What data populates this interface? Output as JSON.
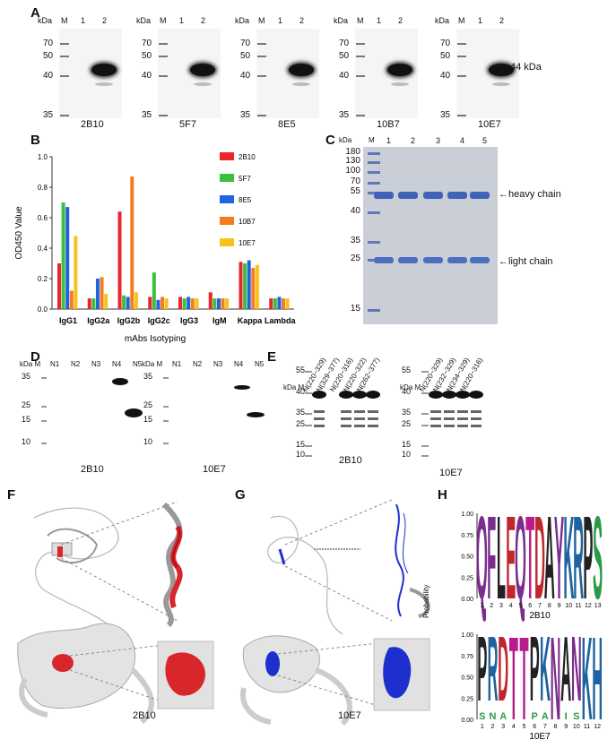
{
  "panel_labels": {
    "A": "A",
    "B": "B",
    "C": "C",
    "D": "D",
    "E": "E",
    "F": "F",
    "G": "G",
    "H": "H"
  },
  "panel_a": {
    "kda": "kDa",
    "m": "M",
    "lane1": "1",
    "lane2": "2",
    "markers": [
      "70",
      "50",
      "40",
      "35"
    ],
    "blots": [
      "2B10",
      "5F7",
      "8E5",
      "10B7",
      "10E7"
    ],
    "arrow_label": "←44 kDa"
  },
  "chart_data": {
    "type": "bar",
    "title": "",
    "xlabel": "mAbs Isotyping",
    "ylabel": "OD450 Value",
    "ylim": [
      0,
      1.0
    ],
    "yticks": [
      "0.0",
      "0.2",
      "0.4",
      "0.6",
      "0.8",
      "1.0"
    ],
    "categories": [
      "IgG1",
      "IgG2a",
      "IgG2b",
      "IgG2c",
      "IgG3",
      "IgM",
      "Kappa",
      "Lambda"
    ],
    "legend_position": "right",
    "series": [
      {
        "name": "2B10",
        "color": "#e8262b",
        "values": [
          0.3,
          0.07,
          0.64,
          0.08,
          0.08,
          0.11,
          0.31,
          0.07
        ]
      },
      {
        "name": "5F7",
        "color": "#3cbf3c",
        "values": [
          0.7,
          0.07,
          0.09,
          0.24,
          0.07,
          0.07,
          0.3,
          0.07
        ]
      },
      {
        "name": "8E5",
        "color": "#1f63e0",
        "values": [
          0.67,
          0.2,
          0.08,
          0.06,
          0.08,
          0.07,
          0.32,
          0.08
        ]
      },
      {
        "name": "10B7",
        "color": "#f47c20",
        "values": [
          0.12,
          0.21,
          0.87,
          0.08,
          0.07,
          0.07,
          0.27,
          0.07
        ]
      },
      {
        "name": "10E7",
        "color": "#f7c21a",
        "values": [
          0.48,
          0.1,
          0.11,
          0.07,
          0.07,
          0.07,
          0.29,
          0.07
        ]
      }
    ]
  },
  "panel_c": {
    "kda": "kDa",
    "m": "M",
    "lanes": [
      "1",
      "2",
      "3",
      "4",
      "5"
    ],
    "markers": [
      "180",
      "130",
      "100",
      "70",
      "55",
      "40",
      "35",
      "25",
      "15"
    ],
    "heavy": "←heavy chain",
    "light": "←light chain"
  },
  "panel_d": {
    "kda": "kDa",
    "m": "M",
    "lanes": [
      "N1",
      "N2",
      "N3",
      "N4",
      "N5"
    ],
    "markers": [
      "35",
      "25",
      "15",
      "10"
    ],
    "blots": [
      "2B10",
      "10E7"
    ]
  },
  "panel_e": {
    "kda": "kDa",
    "m": "M",
    "lanes_left": [
      "N(220~329)",
      "N(329~377)",
      "N(220~316)",
      "N(220~322)",
      "N(262~377)"
    ],
    "lanes_right": [
      "N(220~329)",
      "N(232~329)",
      "N(234~329)",
      "N(220~316)"
    ],
    "markers": [
      "55",
      "40",
      "35",
      "25",
      "15",
      "10"
    ],
    "blots": [
      "2B10",
      "10E7"
    ]
  },
  "panel_f": {
    "label": "2B10"
  },
  "panel_g": {
    "label": "10E7"
  },
  "panel_h": {
    "ylabel": "Probability",
    "yticks": [
      "0.00",
      "0.25",
      "0.50",
      "0.75",
      "1.00"
    ],
    "logo1": {
      "letters": [
        "Q",
        "F",
        "L",
        "E",
        "Q",
        "T",
        "D",
        "A",
        "Y",
        "K",
        "R",
        "P",
        "S"
      ],
      "colors": [
        "#7b2d8e",
        "#7b2d8e",
        "#222",
        "#c0262b",
        "#7b2d8e",
        "#b71c8a",
        "#c0262b",
        "#222",
        "#7b2d8e",
        "#1f63a0",
        "#1f63a0",
        "#222",
        "#2a9a4a"
      ],
      "positions": [
        "1",
        "2",
        "3",
        "4",
        "5",
        "6",
        "7",
        "8",
        "9",
        "10",
        "11",
        "12",
        "13"
      ],
      "name": "2B10"
    },
    "logo2": {
      "letters": [
        "P",
        "R",
        "D",
        "T",
        "T",
        "P",
        "K",
        "N",
        "A",
        "N",
        "K",
        "H"
      ],
      "colors": [
        "#222",
        "#1f63a0",
        "#c0262b",
        "#b71c8a",
        "#b71c8a",
        "#222",
        "#1f63a0",
        "#7b2d8e",
        "#222",
        "#7b2d8e",
        "#1f63a0",
        "#1f63a0"
      ],
      "positions": [
        "1",
        "2",
        "3",
        "4",
        "5",
        "6",
        "7",
        "8",
        "9",
        "10",
        "11",
        "12"
      ],
      "sub": [
        "S",
        "N",
        "A",
        "",
        "",
        "P",
        "A",
        "",
        "I",
        "S",
        "",
        ""
      ],
      "name": "10E7"
    }
  }
}
